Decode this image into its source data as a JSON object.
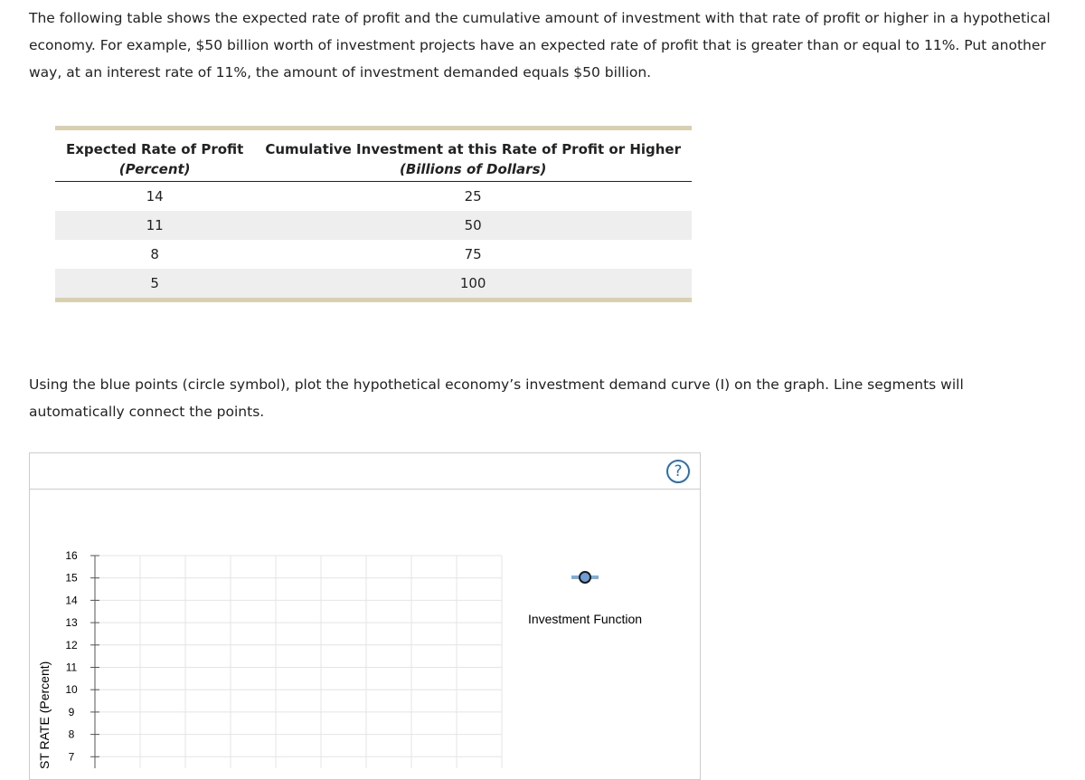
{
  "intro": "The following table shows the expected rate of profit and the cumulative amount of investment with that rate of profit or higher in a hypothetical economy. For example, $50 billion worth of investment projects have an expected rate of profit that is greater than or equal to 11%. Put another way, at an interest rate of 11%, the amount of investment demanded equals $50 billion.",
  "table": {
    "headers": [
      [
        "Expected Rate of Profit",
        "(Percent)"
      ],
      [
        "Cumulative Investment at this Rate of Profit or Higher",
        "(Billions of Dollars)"
      ]
    ],
    "rows": [
      [
        14,
        25
      ],
      [
        11,
        50
      ],
      [
        8,
        75
      ],
      [
        5,
        100
      ]
    ]
  },
  "instruction": "Using the blue points (circle symbol), plot the hypothetical economy’s investment demand curve (I) on the graph. Line segments will automatically connect the points.",
  "graph": {
    "y_axis_label": "ST RATE (Percent)",
    "yticks": [
      16,
      15,
      14,
      13,
      12,
      11,
      10,
      9,
      8,
      7
    ],
    "legend": "Investment Function"
  }
}
